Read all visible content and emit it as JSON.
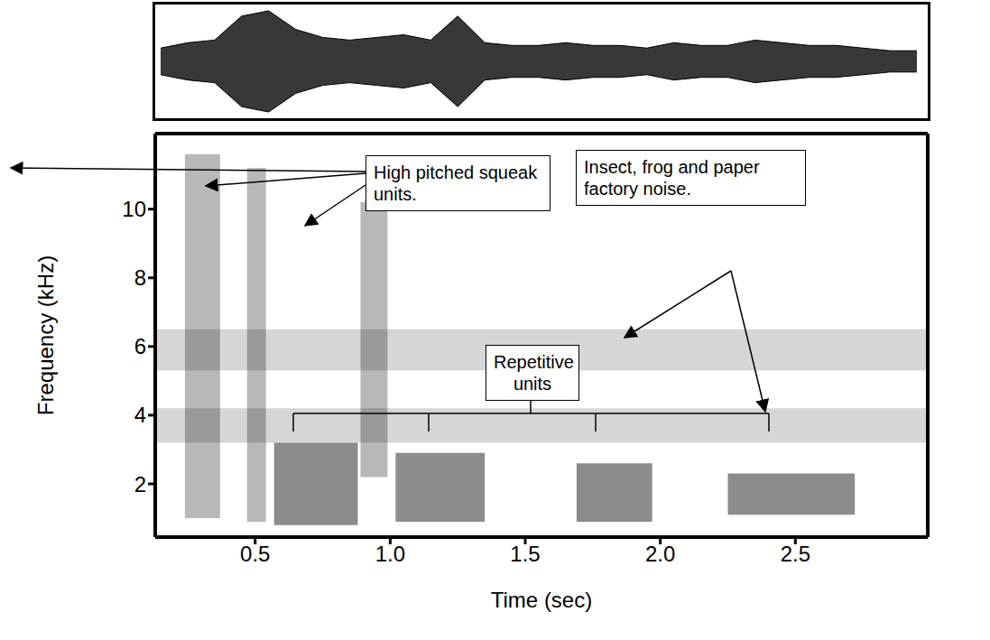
{
  "chart_data": [
    {
      "type": "waveform",
      "x": [
        0.15,
        0.25,
        0.35,
        0.45,
        0.55,
        0.65,
        0.75,
        0.85,
        0.95,
        1.05,
        1.15,
        1.25,
        1.35,
        1.45,
        1.55,
        1.65,
        1.75,
        1.85,
        1.95,
        2.05,
        2.15,
        2.25,
        2.35,
        2.45,
        2.55,
        2.65,
        2.75,
        2.85,
        2.95
      ],
      "amplitude": [
        0.25,
        0.35,
        0.4,
        0.85,
        0.95,
        0.6,
        0.45,
        0.4,
        0.45,
        0.5,
        0.4,
        0.85,
        0.35,
        0.3,
        0.3,
        0.35,
        0.3,
        0.3,
        0.25,
        0.35,
        0.3,
        0.3,
        0.4,
        0.35,
        0.3,
        0.3,
        0.25,
        0.2,
        0.2
      ],
      "xlim": [
        0.13,
        2.99
      ],
      "ylim": [
        -1,
        1
      ],
      "tick_labels": false
    },
    {
      "type": "spectrogram",
      "x_label": "Time (sec)",
      "y_label": "Frequency (kHz)",
      "xlim": [
        0.13,
        2.99
      ],
      "xticks": [
        0.5,
        {
          "value": 1,
          "label": "1.0"
        },
        1.5,
        {
          "value": 2,
          "label": "2.0"
        },
        2.5
      ],
      "ylim": [
        0.45,
        12.2
      ],
      "yticks": [
        2,
        4,
        6,
        8,
        10
      ],
      "annotations": [
        {
          "text": "High pitched squeak units.",
          "regions": [
            {
              "x": [
                0.24,
                0.37
              ],
              "y": [
                1.0,
                11.6
              ]
            },
            {
              "x": [
                0.47,
                0.54
              ],
              "y": [
                0.9,
                11.2
              ]
            },
            {
              "x": [
                0.89,
                0.99
              ],
              "y": [
                2.2,
                10.2
              ]
            }
          ]
        },
        {
          "text": "Insect, frog and paper factory noise.",
          "regions": [
            {
              "x": [
                0.13,
                2.99
              ],
              "y": [
                5.3,
                6.5
              ]
            },
            {
              "x": [
                0.13,
                2.99
              ],
              "y": [
                3.2,
                4.2
              ]
            }
          ]
        },
        {
          "text": "Repetitive units",
          "regions": [
            {
              "x": [
                0.57,
                0.88
              ],
              "y": [
                0.8,
                3.2
              ]
            },
            {
              "x": [
                1.02,
                1.35
              ],
              "y": [
                0.9,
                2.9
              ]
            },
            {
              "x": [
                1.69,
                1.97
              ],
              "y": [
                0.9,
                2.6
              ]
            },
            {
              "x": [
                2.25,
                2.72
              ],
              "y": [
                1.1,
                2.3
              ]
            }
          ]
        }
      ]
    }
  ]
}
